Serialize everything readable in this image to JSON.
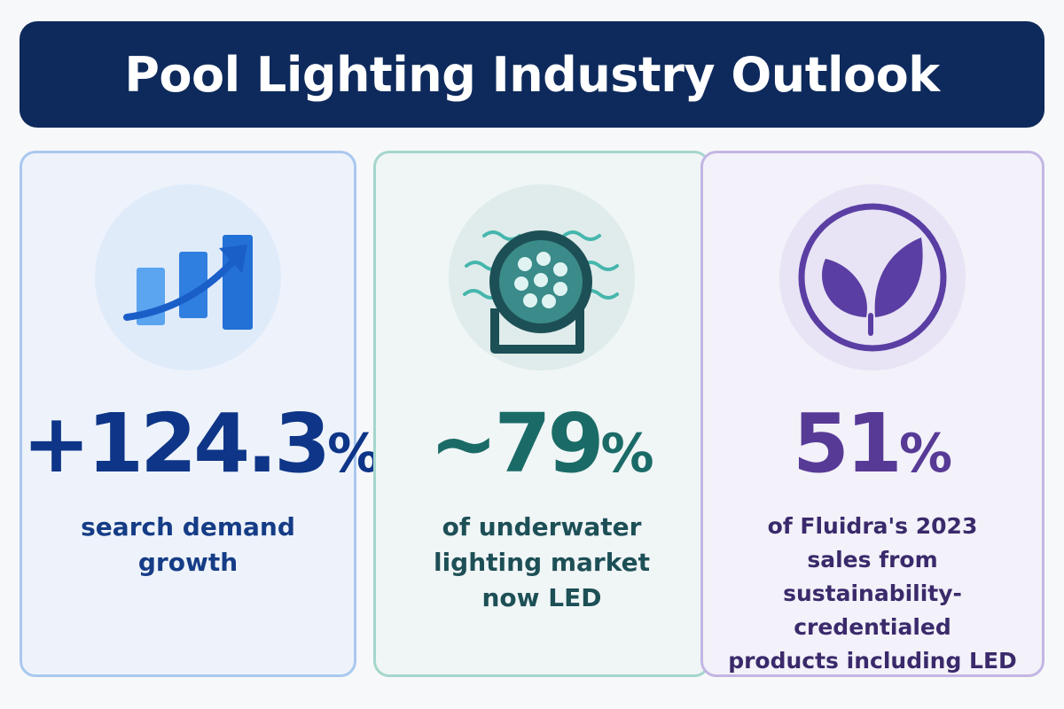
{
  "header": {
    "title": "Pool Lighting Industry Outlook"
  },
  "cards": [
    {
      "icon": "bar-chart-growth-icon",
      "value": "+124.3",
      "unit": "%",
      "description_lines": [
        "search demand",
        "growth"
      ],
      "colors": {
        "accent": "#1f66d1",
        "text": "#0e3587",
        "border": "#a9c8ee"
      }
    },
    {
      "icon": "pool-light-icon",
      "value": "~79",
      "unit": "%",
      "description_lines": [
        "of underwater",
        "lighting market",
        "now LED"
      ],
      "colors": {
        "accent": "#2aa39b",
        "text": "#1a6b67",
        "border": "#a5d6cc"
      }
    },
    {
      "icon": "leaf-icon",
      "value": "51",
      "unit": "%",
      "description_lines": [
        "of Fluidra's 2023",
        "sales from",
        "sustainability-credentialed",
        "products including LED"
      ],
      "colors": {
        "accent": "#5b3ea3",
        "text": "#573a96",
        "border": "#c3b6e3"
      }
    }
  ]
}
